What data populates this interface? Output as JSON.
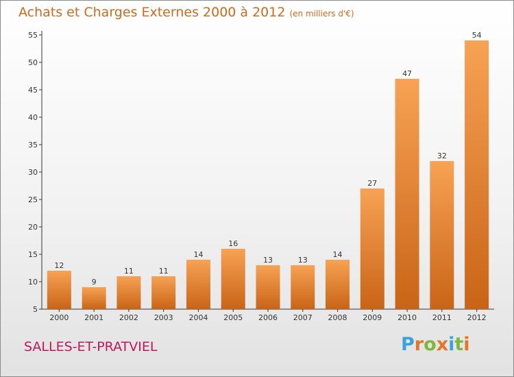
{
  "header": {
    "title": "Achats et Charges Externes 2000 à 2012",
    "subtitle": "(en milliers d'€)"
  },
  "footer": {
    "commune": "SALLES-ET-PRATVIEL",
    "brand": "Proxiti",
    "brand_colors": [
      "#3aa3dc",
      "#e8732a",
      "#7cb83a",
      "#e8732a",
      "#3aa3dc",
      "#7cb83a",
      "#e8732a"
    ]
  },
  "colors": {
    "bar_top": "#f7a254",
    "bar_bottom": "#c96416",
    "title": "#d06a1a",
    "commune": "#c0175a"
  },
  "chart_data": {
    "type": "bar",
    "categories": [
      "2000",
      "2001",
      "2002",
      "2003",
      "2004",
      "2005",
      "2006",
      "2007",
      "2008",
      "2009",
      "2010",
      "2011",
      "2012"
    ],
    "values": [
      12,
      9,
      11,
      11,
      14,
      16,
      13,
      13,
      14,
      27,
      47,
      32,
      54
    ],
    "ylim": [
      5,
      55
    ],
    "yticks": [
      5,
      10,
      15,
      20,
      25,
      30,
      35,
      40,
      45,
      50,
      55
    ],
    "grid": false,
    "title": "Achats et Charges Externes 2000 à 2012",
    "subtitle": "(en milliers d'€)",
    "xlabel": "",
    "ylabel": ""
  }
}
